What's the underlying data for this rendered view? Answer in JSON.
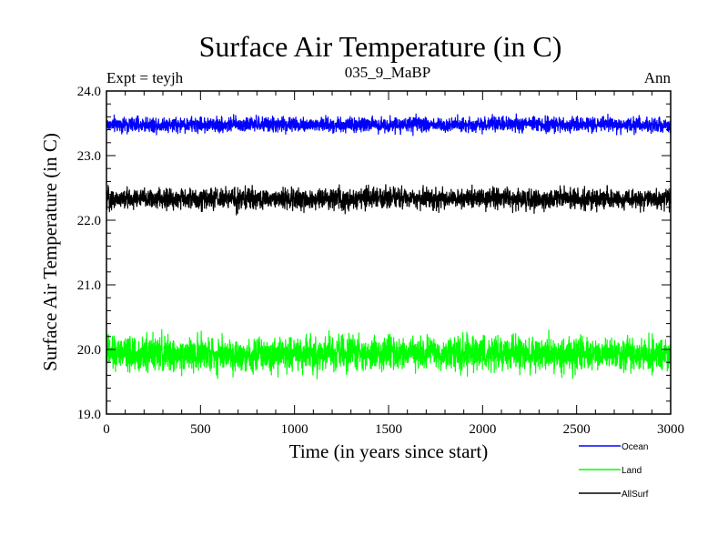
{
  "chart_data": {
    "type": "line",
    "title": "Surface Air Temperature (in C)",
    "subtitle": "035_9_MaBP",
    "left_label": "Expt = teyjh",
    "right_label": "Ann",
    "xlabel": "Time (in years since start)",
    "ylabel": "Surface Air Temperature (in C)",
    "xlim": [
      0,
      3000
    ],
    "ylim": [
      19.0,
      24.0
    ],
    "x_ticks": [
      0,
      500,
      1000,
      1500,
      2000,
      2500,
      3000
    ],
    "x_tick_labels": [
      "0",
      "500",
      "1000",
      "1500",
      "2000",
      "2500",
      "3000"
    ],
    "y_ticks": [
      19.0,
      20.0,
      21.0,
      22.0,
      23.0,
      24.0
    ],
    "y_tick_labels": [
      "19.0",
      "20.0",
      "21.0",
      "22.0",
      "23.0",
      "24.0"
    ],
    "grid": false,
    "legend_position": "bottom-right",
    "series": [
      {
        "name": "Ocean",
        "color": "#0000ff",
        "mean": 23.48,
        "min": 23.3,
        "max": 23.68,
        "values": []
      },
      {
        "name": "Land",
        "color": "#00ff00",
        "mean": 19.93,
        "min": 19.52,
        "max": 20.5,
        "values": []
      },
      {
        "name": "AllSurf",
        "color": "#000000",
        "mean": 22.33,
        "min": 22.08,
        "max": 22.6,
        "values": []
      }
    ]
  }
}
